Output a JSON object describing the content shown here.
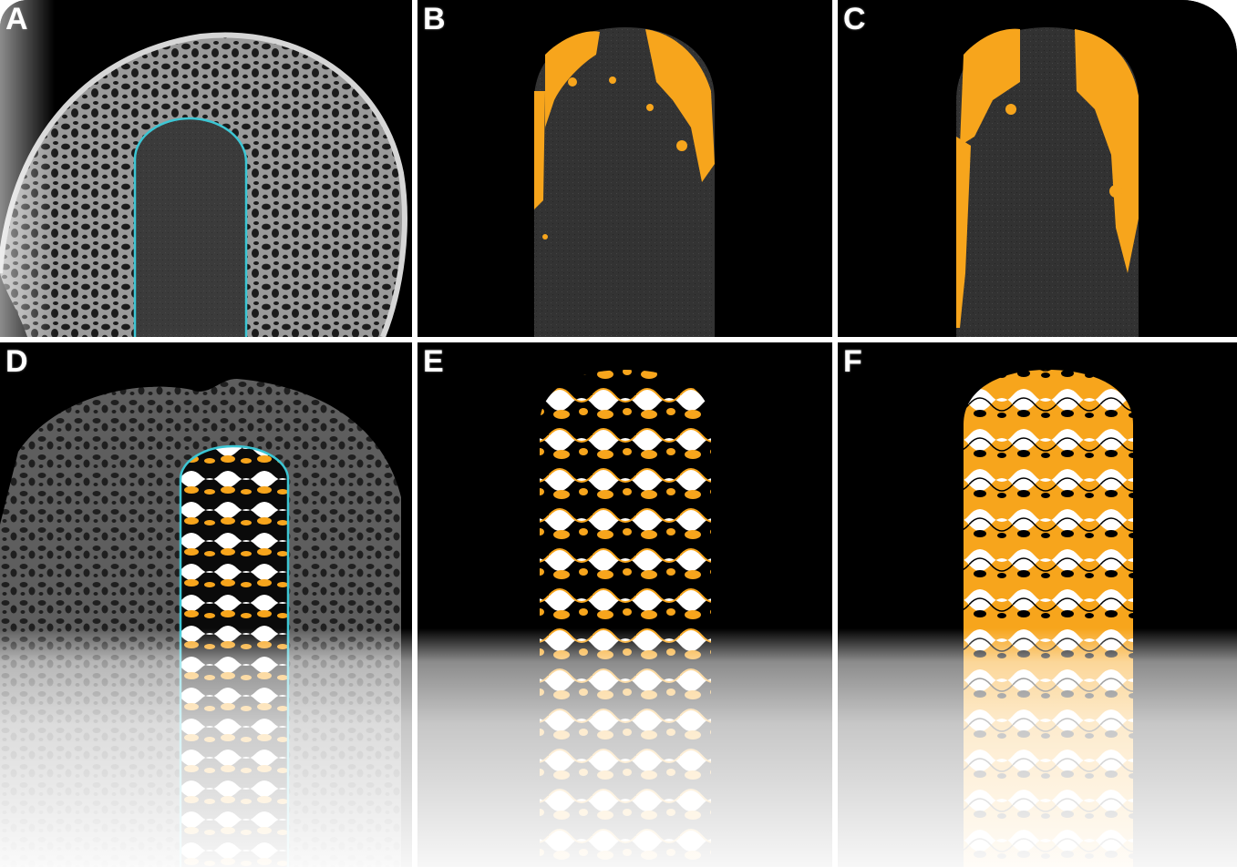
{
  "figure": {
    "panels": [
      {
        "id": "a",
        "label": "A"
      },
      {
        "id": "b",
        "label": "B"
      },
      {
        "id": "c",
        "label": "C"
      },
      {
        "id": "d",
        "label": "D"
      },
      {
        "id": "e",
        "label": "E"
      },
      {
        "id": "f",
        "label": "F"
      }
    ],
    "colors": {
      "background": "#000000",
      "bone_gray": "#b8b8b8",
      "implant_gray": "#3a3a3a",
      "highlight_orange": "#f7a51c",
      "outline_cyan": "#3cc6d4",
      "scaffold_white": "#ffffff"
    }
  }
}
